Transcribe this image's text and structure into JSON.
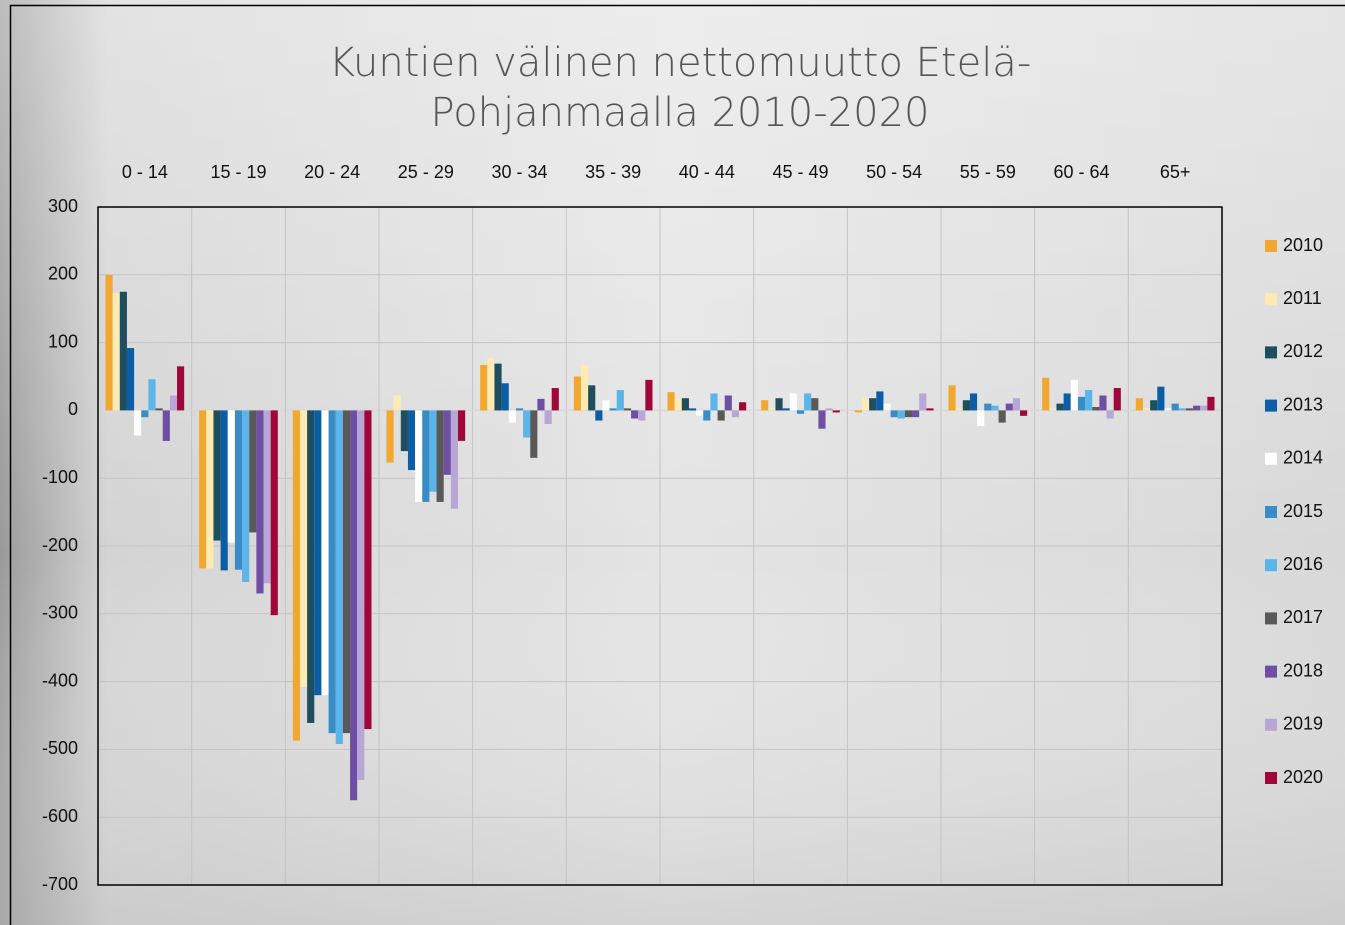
{
  "chart_data": {
    "type": "bar",
    "title": "Kuntien välinen nettomuutto Etelä-Pohjanmaalla 2010-2020",
    "categories": [
      "0 - 14",
      "15 - 19",
      "20 - 24",
      "25 - 29",
      "30 - 34",
      "35 - 39",
      "40 - 44",
      "45 - 49",
      "50 - 54",
      "55 - 59",
      "60 - 64",
      "65+"
    ],
    "series": [
      {
        "name": "2010",
        "color": "#f0a830",
        "values": [
          200,
          -233,
          -487,
          -77,
          67,
          50,
          27,
          15,
          -3,
          37,
          48,
          18
        ]
      },
      {
        "name": "2011",
        "color": "#fdebb3",
        "values": [
          173,
          -233,
          -408,
          22,
          77,
          67,
          17,
          3,
          18,
          3,
          3,
          3
        ]
      },
      {
        "name": "2012",
        "color": "#1f4e5f",
        "values": [
          175,
          -192,
          -461,
          -60,
          69,
          37,
          18,
          18,
          18,
          15,
          10,
          15
        ]
      },
      {
        "name": "2013",
        "color": "#0b5ea5",
        "values": [
          92,
          -236,
          -420,
          -88,
          40,
          -15,
          3,
          3,
          28,
          25,
          25,
          35
        ]
      },
      {
        "name": "2014",
        "color": "#ffffff",
        "values": [
          -37,
          -195,
          -420,
          -135,
          -18,
          15,
          -8,
          25,
          10,
          -23,
          45,
          3
        ]
      },
      {
        "name": "2015",
        "color": "#3a8cc6",
        "values": [
          -10,
          -235,
          -476,
          -135,
          3,
          3,
          -15,
          -5,
          -10,
          10,
          20,
          10
        ]
      },
      {
        "name": "2016",
        "color": "#5bb5e8",
        "values": [
          46,
          -253,
          -492,
          -120,
          -40,
          30,
          25,
          25,
          -12,
          7,
          30,
          3
        ]
      },
      {
        "name": "2017",
        "color": "#595959",
        "values": [
          3,
          -180,
          -476,
          -135,
          -70,
          3,
          -15,
          18,
          -10,
          -18,
          5,
          3
        ]
      },
      {
        "name": "2018",
        "color": "#6f4fa3",
        "values": [
          -45,
          -270,
          -575,
          -95,
          17,
          -12,
          22,
          -27,
          -10,
          10,
          22,
          7
        ]
      },
      {
        "name": "2019",
        "color": "#b8a6d6",
        "values": [
          22,
          -255,
          -545,
          -145,
          -20,
          -15,
          -10,
          3,
          25,
          18,
          -12,
          7
        ]
      },
      {
        "name": "2020",
        "color": "#a0063a",
        "values": [
          65,
          -302,
          -470,
          -45,
          33,
          45,
          12,
          -3,
          3,
          -8,
          33,
          20
        ]
      }
    ],
    "ylim": [
      -700,
      300
    ],
    "yticks": [
      -700,
      -600,
      -500,
      -400,
      -300,
      -200,
      -100,
      0,
      100,
      200,
      300
    ],
    "grid": true
  }
}
